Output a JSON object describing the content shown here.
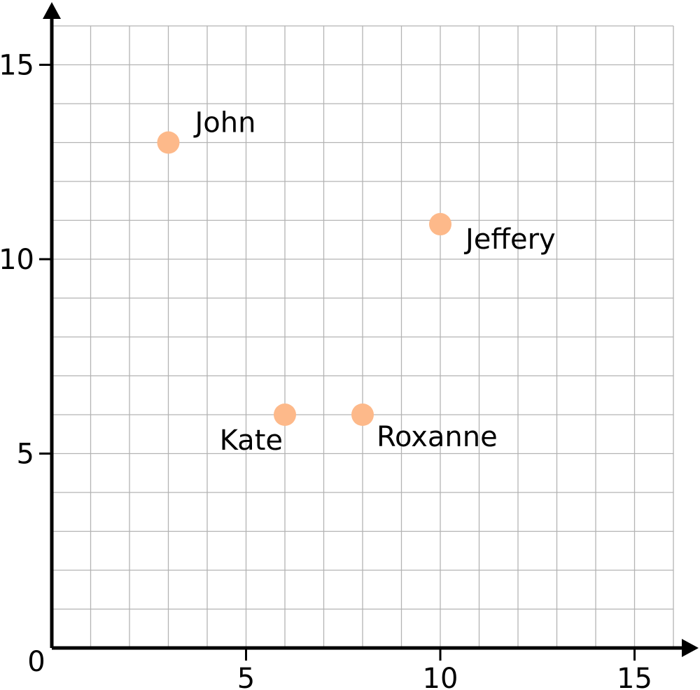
{
  "chart_data": {
    "type": "scatter",
    "title": "",
    "xlabel": "",
    "ylabel": "",
    "xlim": [
      0,
      16
    ],
    "ylim": [
      0,
      16
    ],
    "origin_label": "0",
    "x_ticks": [
      "5",
      "10",
      "15"
    ],
    "y_ticks": [
      "5",
      "10",
      "15"
    ],
    "grid": true,
    "grid_step": 1,
    "marker_color": "#FDB98A",
    "points": [
      {
        "label": "John",
        "x": 3,
        "y": 13
      },
      {
        "label": "Jeffery",
        "x": 10,
        "y": 10.9
      },
      {
        "label": "Kate",
        "x": 6,
        "y": 6
      },
      {
        "label": "Roxanne",
        "x": 8,
        "y": 6
      }
    ]
  }
}
